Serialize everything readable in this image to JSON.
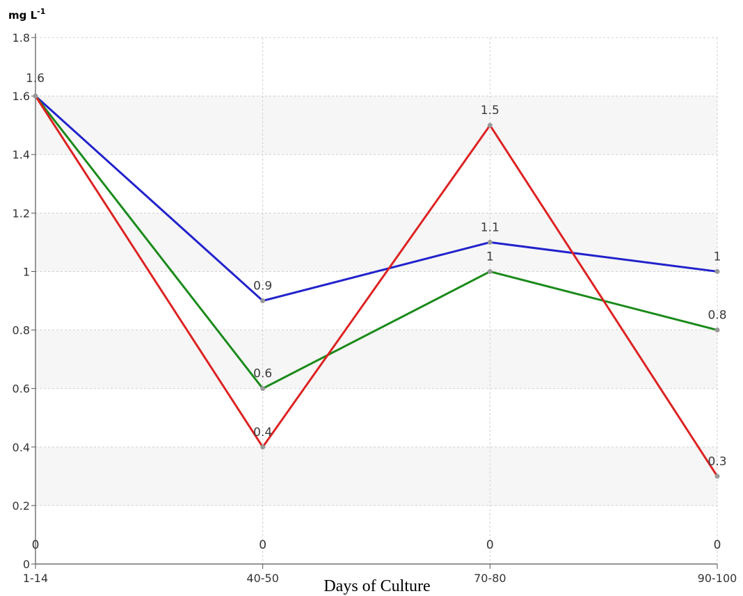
{
  "chart_data": {
    "type": "line",
    "unit_label": "mg L",
    "unit_superscript": "-1",
    "xlabel": "Days of Culture",
    "categories": [
      "1-14",
      "40-50",
      "70-80",
      "90-100"
    ],
    "ylim": [
      0,
      1.8
    ],
    "yticks": [
      0,
      0.2,
      0.4,
      0.6,
      0.8,
      1,
      1.2,
      1.4,
      1.6,
      1.8
    ],
    "grid": true,
    "series": [
      {
        "color": "#2222cc",
        "values": [
          1.6,
          0.9,
          1.1,
          1.0
        ],
        "labels": [
          "",
          "0.9",
          "1.1",
          "1"
        ]
      },
      {
        "color": "#1a8a1a",
        "values": [
          1.6,
          0.6,
          1.0,
          0.8
        ],
        "labels": [
          "",
          "0.6",
          "1",
          "0.8"
        ]
      },
      {
        "color": "#dd2222",
        "values": [
          1.6,
          0.4,
          1.5,
          0.3
        ],
        "labels": [
          "1.6",
          "0.4",
          "1.5",
          "0.3"
        ]
      }
    ],
    "zero_labels": [
      "0",
      "0",
      "0",
      "0"
    ]
  }
}
